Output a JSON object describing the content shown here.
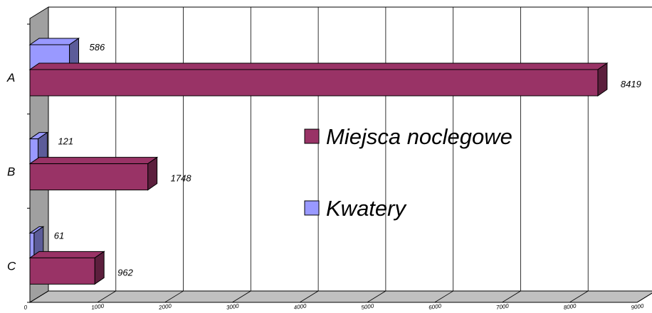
{
  "chart_data": {
    "type": "bar",
    "orientation": "horizontal",
    "three_d": true,
    "categories": [
      "A",
      "B",
      "C"
    ],
    "series": [
      {
        "name": "Kwatery",
        "values": [
          586,
          121,
          61
        ],
        "color": "#9999ff"
      },
      {
        "name": "Miejsca noclegowe",
        "values": [
          8419,
          1748,
          962
        ],
        "color": "#993366"
      }
    ],
    "data_labels": {
      "Kwatery": [
        "586",
        "121",
        "61"
      ],
      "Miejsca noclegowe": [
        "8419",
        "1748",
        "962"
      ]
    },
    "x_ticks": [
      "0",
      "1000",
      "2000",
      "3000",
      "4000",
      "5000",
      "6000",
      "7000",
      "8000",
      "9000"
    ],
    "xlim": [
      0,
      9000
    ],
    "grid": true,
    "legend": {
      "position": "right",
      "entries": [
        "Miejsca noclegowe",
        "Kwatery"
      ]
    },
    "title": "",
    "xlabel": "",
    "ylabel": ""
  }
}
